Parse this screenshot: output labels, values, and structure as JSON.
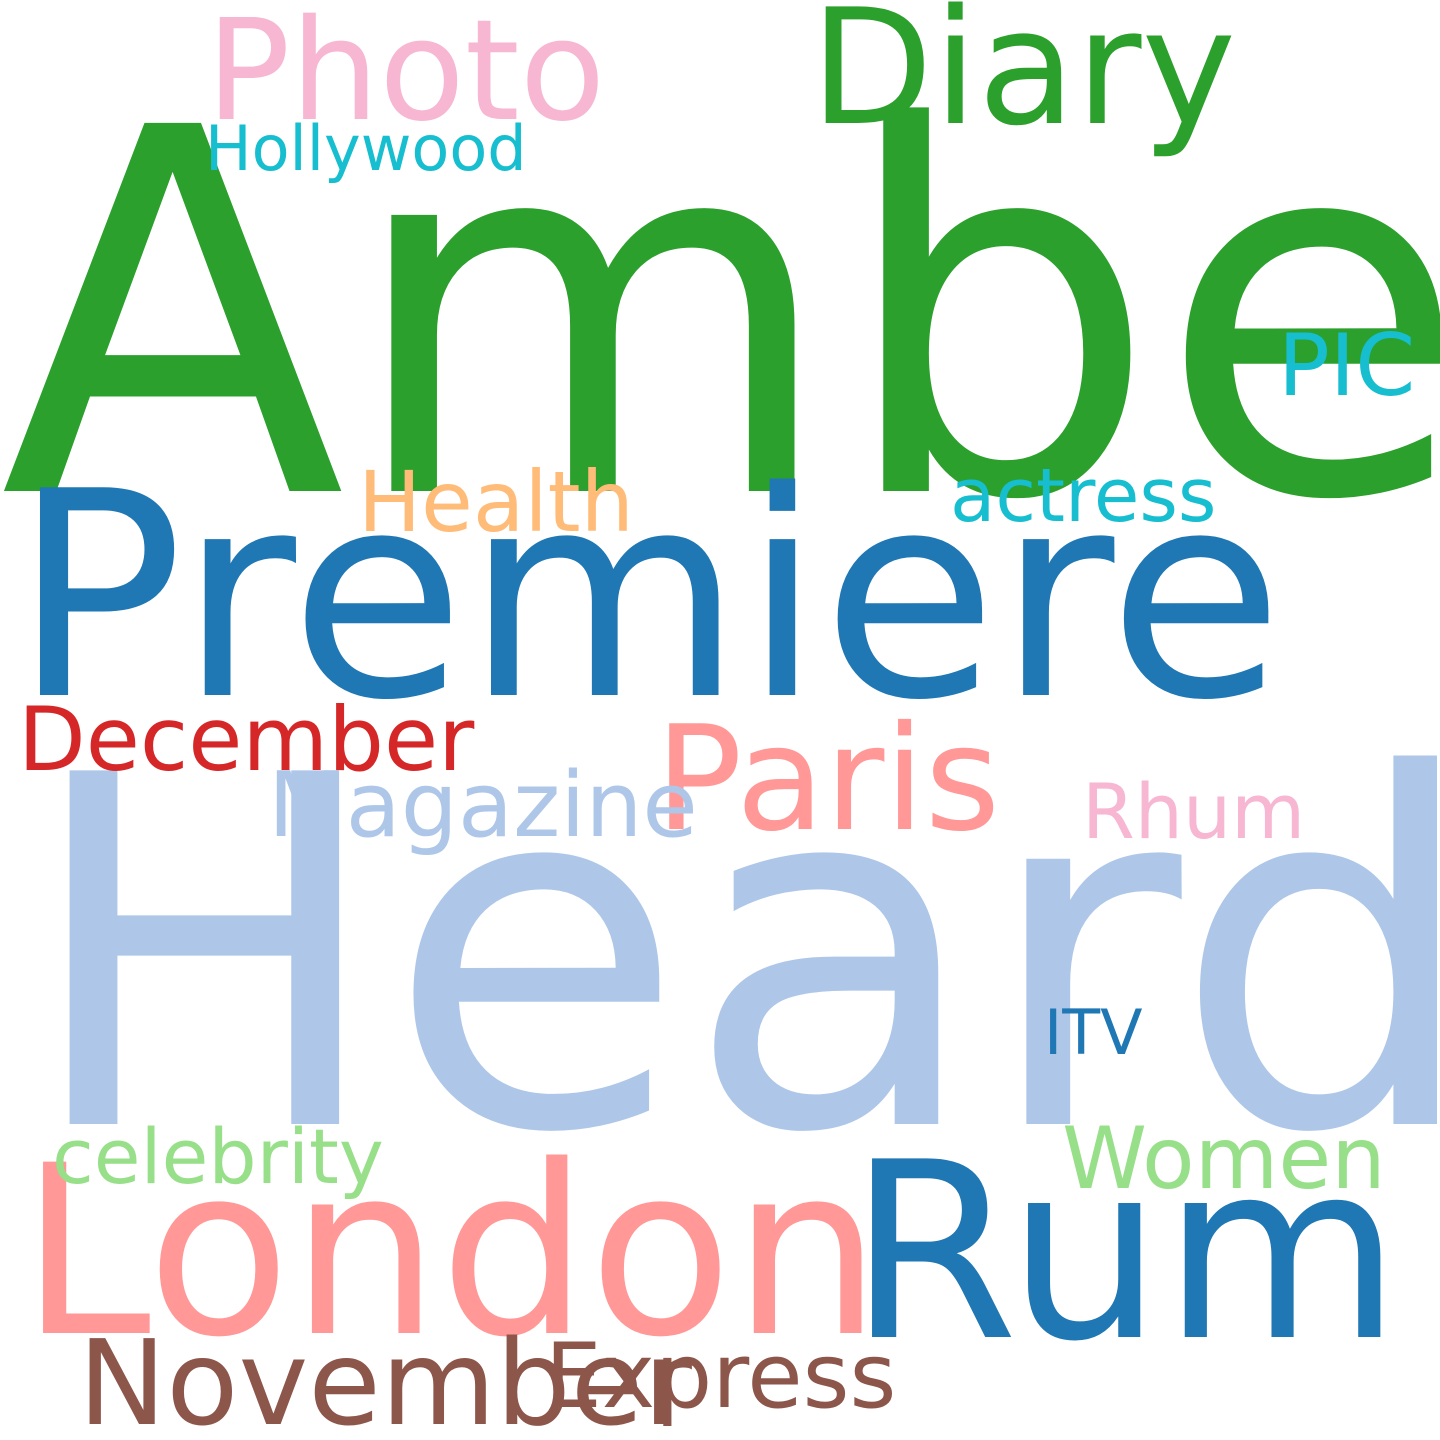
{
  "words": {
    "amber": {
      "text": "Amber",
      "color": "#2ca02c"
    },
    "heard": {
      "text": "Heard",
      "color": "#aec7e8"
    },
    "premiere": {
      "text": "Premiere",
      "color": "#1f77b4"
    },
    "london": {
      "text": "London",
      "color": "#ff9896"
    },
    "rum": {
      "text": "Rum",
      "color": "#1f77b4"
    },
    "diary": {
      "text": "Diary",
      "color": "#2ca02c"
    },
    "photo": {
      "text": "Photo",
      "color": "#f7b6d2"
    },
    "paris": {
      "text": "Paris",
      "color": "#ff9896"
    },
    "november": {
      "text": "November",
      "color": "#8c564b"
    },
    "december": {
      "text": "December",
      "color": "#d62728"
    },
    "magazine": {
      "text": "Magazine",
      "color": "#aec7e8"
    },
    "express": {
      "text": "Express",
      "color": "#8c564b"
    },
    "women": {
      "text": "Women",
      "color": "#98df8a"
    },
    "pic": {
      "text": "PIC",
      "color": "#17becf"
    },
    "health": {
      "text": "Health",
      "color": "#ffbb78"
    },
    "actress": {
      "text": "actress",
      "color": "#17becf"
    },
    "celebrity": {
      "text": "celebrity",
      "color": "#98df8a"
    },
    "rhum": {
      "text": "Rhum",
      "color": "#f7b6d2"
    },
    "hollywood": {
      "text": "Hollywood",
      "color": "#17becf"
    },
    "itv": {
      "text": "ITV",
      "color": "#1f77b4"
    }
  }
}
